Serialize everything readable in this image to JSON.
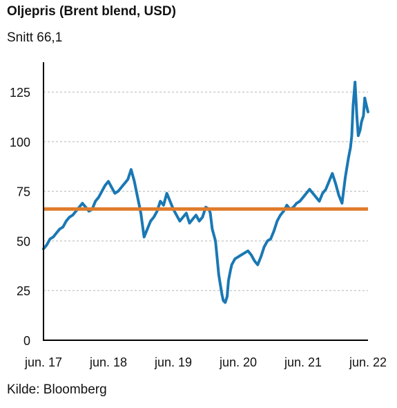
{
  "chart_data": {
    "type": "line",
    "title": "Oljepris (Brent blend, USD)",
    "subtitle": "Snitt 66,1",
    "source": "Kilde: Bloomberg",
    "xlabel": "",
    "ylabel": "",
    "ylim": [
      0,
      140
    ],
    "yticks": [
      0,
      25,
      50,
      75,
      100,
      125
    ],
    "ytick_labels": [
      "0",
      "25",
      "50",
      "75",
      "100",
      "125"
    ],
    "xlim": [
      2017.45,
      2022.45
    ],
    "xticks": [
      2017.45,
      2018.45,
      2019.45,
      2020.45,
      2021.45,
      2022.45
    ],
    "xtick_labels": [
      "jun. 17",
      "jun. 18",
      "jun. 19",
      "jun. 20",
      "jun. 21",
      "jun. 22"
    ],
    "grid": "horizontal dashed",
    "colors": {
      "series": "#1a78b4",
      "average": "#e07b2a",
      "grid": "#b5b5b5",
      "axis": "#000000"
    },
    "series": [
      {
        "x": [
          2017.45,
          2017.5,
          2017.55,
          2017.6,
          2017.65,
          2017.7,
          2017.75,
          2017.8,
          2017.85,
          2017.9,
          2017.95,
          2018.0,
          2018.05,
          2018.1,
          2018.15,
          2018.2,
          2018.25,
          2018.3,
          2018.35,
          2018.4,
          2018.45,
          2018.5,
          2018.55,
          2018.6,
          2018.65,
          2018.7,
          2018.75,
          2018.8,
          2018.85,
          2018.9,
          2018.95,
          2019.0,
          2019.05,
          2019.1,
          2019.15,
          2019.2,
          2019.25,
          2019.3,
          2019.35,
          2019.4,
          2019.45,
          2019.5,
          2019.55,
          2019.6,
          2019.65,
          2019.7,
          2019.75,
          2019.8,
          2019.85,
          2019.9,
          2019.95,
          2020.0,
          2020.02,
          2020.05,
          2020.1,
          2020.13,
          2020.15,
          2020.18,
          2020.2,
          2020.22,
          2020.25,
          2020.28,
          2020.3,
          2020.33,
          2020.35,
          2020.4,
          2020.45,
          2020.5,
          2020.55,
          2020.6,
          2020.65,
          2020.7,
          2020.75,
          2020.8,
          2020.85,
          2020.9,
          2020.95,
          2021.0,
          2021.05,
          2021.1,
          2021.15,
          2021.2,
          2021.25,
          2021.3,
          2021.35,
          2021.4,
          2021.45,
          2021.5,
          2021.55,
          2021.6,
          2021.65,
          2021.7,
          2021.75,
          2021.8,
          2021.85,
          2021.9,
          2021.95,
          2022.0,
          2022.05,
          2022.1,
          2022.13,
          2022.15,
          2022.18,
          2022.2,
          2022.22,
          2022.25,
          2022.28,
          2022.3,
          2022.33,
          2022.35,
          2022.38,
          2022.4,
          2022.42,
          2022.45
        ],
        "y": [
          46,
          48,
          51,
          52,
          54,
          56,
          57,
          60,
          62,
          63,
          65,
          67,
          69,
          67,
          65,
          66,
          70,
          72,
          75,
          78,
          80,
          77,
          74,
          75,
          77,
          79,
          81,
          86,
          80,
          72,
          64,
          52,
          56,
          60,
          62,
          65,
          70,
          68,
          74,
          70,
          66,
          63,
          60,
          62,
          64,
          59,
          61,
          63,
          60,
          62,
          67,
          66,
          64,
          56,
          50,
          40,
          33,
          27,
          23,
          20,
          19,
          22,
          30,
          35,
          38,
          41,
          42,
          43,
          44,
          45,
          43,
          40,
          38,
          42,
          47,
          50,
          51,
          55,
          60,
          63,
          65,
          68,
          66,
          67,
          69,
          70,
          72,
          74,
          76,
          74,
          72,
          70,
          74,
          76,
          80,
          84,
          79,
          73,
          69,
          82,
          88,
          92,
          97,
          103,
          118,
          130,
          112,
          103,
          106,
          110,
          113,
          122,
          119,
          115
        ]
      }
    ],
    "average": {
      "value": 66.1
    }
  }
}
